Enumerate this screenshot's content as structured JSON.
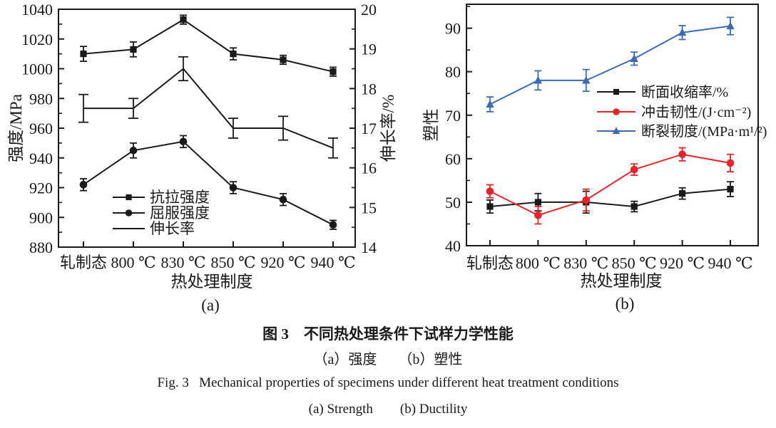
{
  "page": {
    "background": "#ffffff",
    "ink_color": "#1a1a1a"
  },
  "figure_captions": {
    "caption_cn": "图 3　不同热处理条件下试样力学性能",
    "caption_sub_cn": "（a）强度　　（b）塑性",
    "caption_en": "Fig. 3   Mechanical properties of specimens under different heat treatment conditions",
    "caption_sub_en": "(a) Strength　　(b) Ductility"
  },
  "chart_data": [
    {
      "id": "a",
      "type": "line",
      "panel_label": "(a)",
      "categories": [
        "轧制态",
        "800 ℃",
        "830 ℃",
        "850 ℃",
        "920 ℃",
        "940 ℃"
      ],
      "xlabel": "热处理制度",
      "ylabel_left": "强度/MPa",
      "ylabel_right": "伸长率/%",
      "ylim_left": [
        880,
        1040
      ],
      "yticks_left": [
        880,
        900,
        920,
        940,
        960,
        980,
        1000,
        1020,
        1040
      ],
      "ylim_right": [
        14,
        20
      ],
      "yticks_right": [
        14,
        15,
        16,
        17,
        18,
        19,
        20
      ],
      "grid": false,
      "legend_position": "inside-bottom-center",
      "series": [
        {
          "name": "抗拉强度",
          "axis": "left",
          "marker": "square",
          "color": "#1a1a1a",
          "values": [
            1010,
            1013,
            1033,
            1010,
            1006,
            998
          ],
          "errors": [
            5,
            5,
            3,
            4,
            3,
            3
          ]
        },
        {
          "name": "屈服强度",
          "axis": "left",
          "marker": "circle",
          "color": "#1a1a1a",
          "values": [
            922,
            945,
            951,
            920,
            912,
            895
          ],
          "errors": [
            4,
            5,
            4,
            4,
            4,
            3
          ]
        },
        {
          "name": "伸长率",
          "axis": "right",
          "marker": "none",
          "color": "#1a1a1a",
          "values": [
            17.5,
            17.5,
            18.5,
            17.0,
            17.0,
            16.5
          ],
          "errors": [
            0.35,
            0.25,
            0.3,
            0.25,
            0.3,
            0.25
          ]
        }
      ]
    },
    {
      "id": "b",
      "type": "line",
      "panel_label": "(b)",
      "categories": [
        "轧制态",
        "800 ℃",
        "830 ℃",
        "850 ℃",
        "920 ℃",
        "940 ℃"
      ],
      "xlabel": "热处理制度",
      "ylabel_left": "塑性",
      "ylim_left": [
        40,
        95.5
      ],
      "yticks_left": [
        40,
        50,
        60,
        70,
        80,
        90
      ],
      "grid": false,
      "legend_position": "inside-middle-right",
      "series": [
        {
          "name": "断面收缩率/%",
          "axis": "left",
          "marker": "square",
          "color": "#1a1a1a",
          "values": [
            49,
            50,
            50,
            49,
            52,
            53
          ],
          "errors": [
            1.5,
            2,
            2.5,
            1.2,
            1.3,
            1.7
          ]
        },
        {
          "name": "冲击韧性/(J·cm⁻²)",
          "axis": "left",
          "marker": "circle",
          "color": "#e8242b",
          "values": [
            52.5,
            47,
            50.5,
            57.5,
            61,
            59
          ],
          "errors": [
            1.5,
            2,
            2.5,
            1.3,
            1.5,
            2
          ]
        },
        {
          "name": "断裂韧度/(MPa·m¹/²)",
          "axis": "left",
          "marker": "triangle",
          "color": "#3b6ab8",
          "values": [
            72.5,
            78,
            78,
            83,
            89,
            90.5
          ],
          "errors": [
            1.7,
            2.2,
            2.5,
            1.5,
            1.6,
            2
          ]
        }
      ]
    }
  ]
}
